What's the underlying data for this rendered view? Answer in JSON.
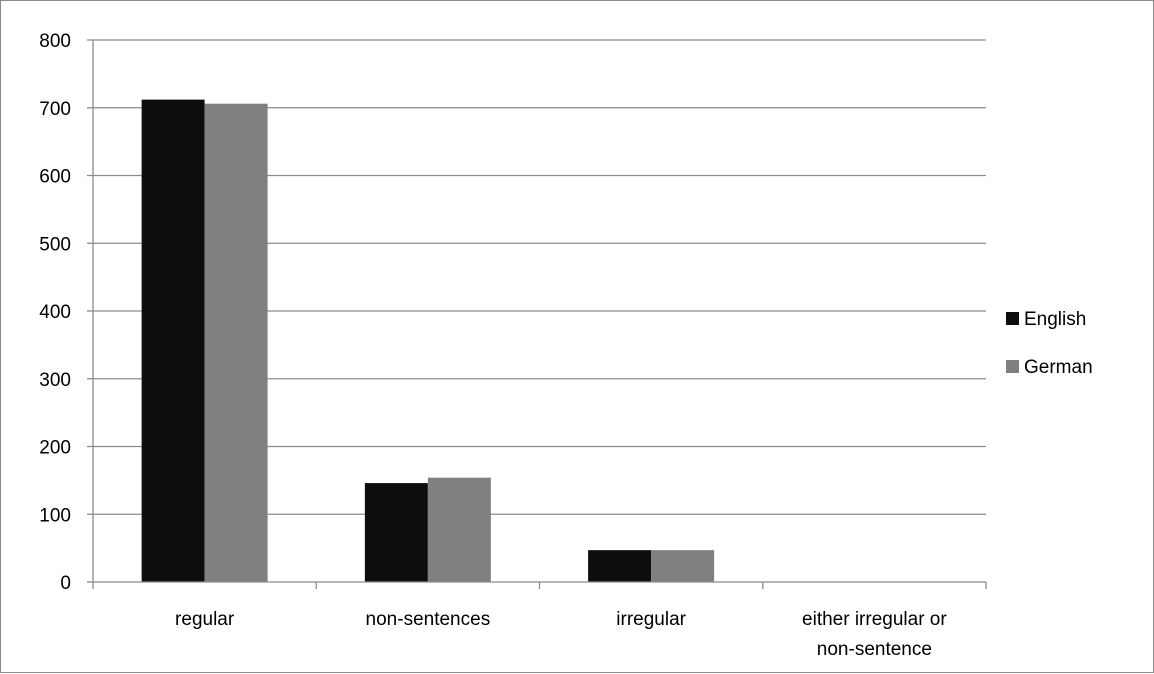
{
  "chart_data": {
    "type": "bar",
    "title": "",
    "xlabel": "",
    "ylabel": "",
    "categories": [
      [
        "regular"
      ],
      [
        "non-sentences"
      ],
      [
        "irregular"
      ],
      [
        "either irregular or",
        "non-sentence"
      ]
    ],
    "series": [
      {
        "name": "English",
        "color": "#0d0d0d",
        "values": [
          712,
          146,
          47,
          0
        ]
      },
      {
        "name": "German",
        "color": "#808080",
        "values": [
          706,
          154,
          47,
          0
        ]
      }
    ],
    "ylim": [
      0,
      800
    ],
    "yticks": [
      "0",
      "100",
      "200",
      "300",
      "400",
      "500",
      "600",
      "700",
      "800"
    ],
    "grid": "horizontal",
    "legend_position": "right"
  }
}
